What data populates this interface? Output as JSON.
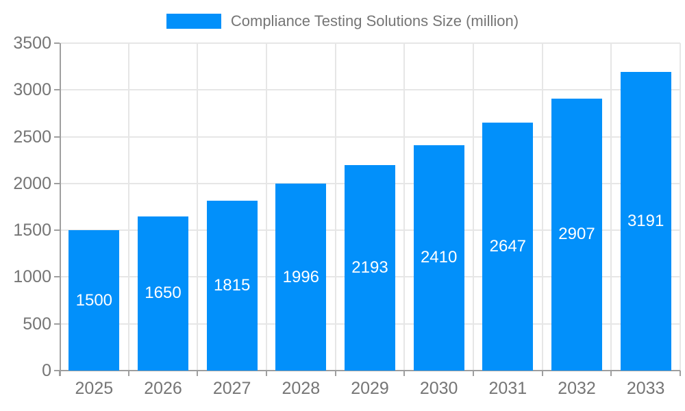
{
  "legend": {
    "label": "Compliance Testing Solutions Size (million)"
  },
  "chart_data": {
    "type": "bar",
    "title": "Compliance Testing Solutions Size (million)",
    "categories": [
      "2025",
      "2026",
      "2027",
      "2028",
      "2029",
      "2030",
      "2031",
      "2032",
      "2033"
    ],
    "values": [
      1500,
      1650,
      1815,
      1996,
      2193,
      2410,
      2647,
      2907,
      3191
    ],
    "series": [
      {
        "name": "Compliance Testing Solutions Size (million)",
        "values": [
          1500,
          1650,
          1815,
          1996,
          2193,
          2410,
          2647,
          2907,
          3191
        ]
      }
    ],
    "xlabel": "",
    "ylabel": "",
    "ylim": [
      0,
      3500
    ],
    "yticks": [
      0,
      500,
      1000,
      1500,
      2000,
      2500,
      3000,
      3500
    ],
    "grid": "on",
    "legend_position": "top-center",
    "value_label_position": "inside-center"
  },
  "colors": {
    "bar": "#0290fa",
    "axis": "#9e9e9e",
    "gridline": "#e6e6e6",
    "tick_text": "#757575",
    "value_text": "#ffffff",
    "background": "#ffffff"
  }
}
